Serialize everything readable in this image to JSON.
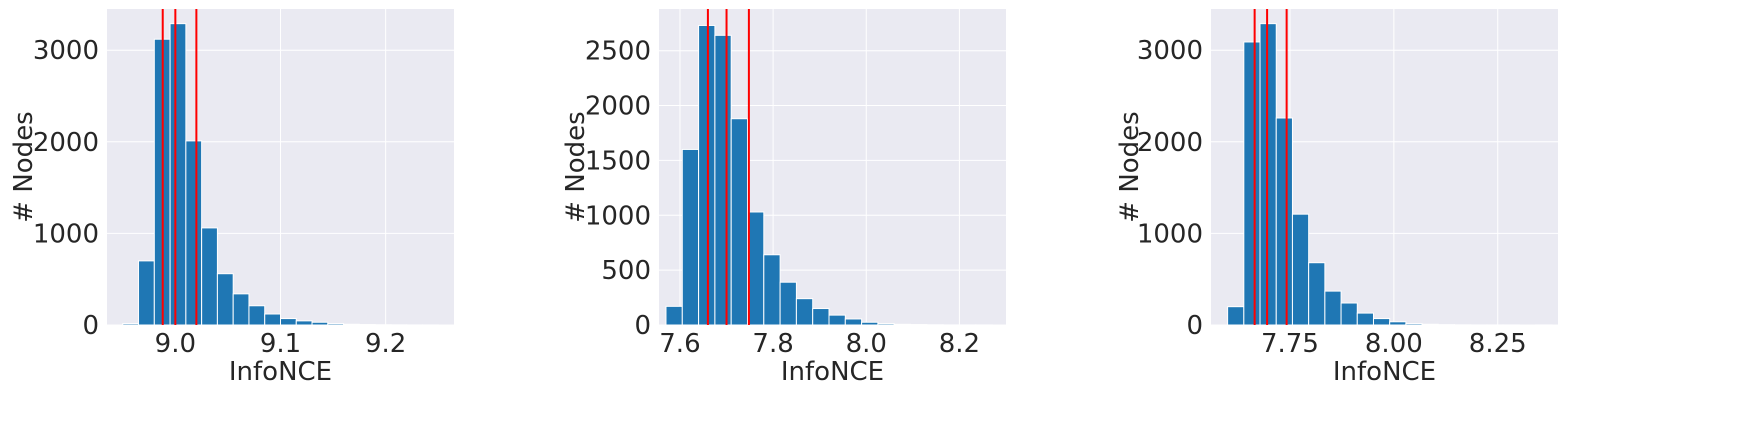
{
  "style": {
    "bar_color": "#1f77b4",
    "bar_edge": "#ffffff",
    "marker_color": "#ff0000",
    "plot_bg": "#eaeaf2",
    "grid_color": "#ffffff"
  },
  "chart_data": [
    {
      "type": "bar",
      "xlabel": "InfoNCE",
      "ylabel": "# Nodes",
      "xlim": [
        8.935,
        9.265
      ],
      "ylim": [
        0,
        3450
      ],
      "grid": true,
      "xticks": [
        9.0,
        9.1,
        9.2
      ],
      "xtick_labels": [
        "9.0",
        "9.1",
        "9.2"
      ],
      "yticks": [
        0,
        1000,
        2000,
        3000
      ],
      "ytick_labels": [
        "0",
        "1000",
        "2000",
        "3000"
      ],
      "bin_edges": [
        8.95,
        8.965,
        8.98,
        8.995,
        9.01,
        9.025,
        9.04,
        9.055,
        9.07,
        9.085,
        9.1,
        9.115,
        9.13,
        9.145,
        9.16,
        9.175,
        9.19,
        9.205,
        9.22,
        9.235,
        9.25
      ],
      "counts": [
        15,
        700,
        3120,
        3290,
        2010,
        1060,
        560,
        340,
        210,
        120,
        70,
        45,
        30,
        15,
        8,
        5,
        3,
        2,
        1,
        1
      ],
      "vlines": [
        8.988,
        9.0,
        9.02
      ]
    },
    {
      "type": "bar",
      "xlabel": "InfoNCE",
      "ylabel": "# Nodes",
      "xlim": [
        7.555,
        8.3
      ],
      "ylim": [
        0,
        2880
      ],
      "grid": true,
      "xticks": [
        7.6,
        7.8,
        8.0,
        8.2
      ],
      "xtick_labels": [
        "7.6",
        "7.8",
        "8.0",
        "8.2"
      ],
      "yticks": [
        0,
        500,
        1000,
        1500,
        2000,
        2500
      ],
      "ytick_labels": [
        "0",
        "500",
        "1000",
        "1500",
        "2000",
        "2500"
      ],
      "bin_edges": [
        7.57,
        7.605,
        7.64,
        7.675,
        7.71,
        7.745,
        7.78,
        7.815,
        7.85,
        7.885,
        7.92,
        7.955,
        7.99,
        8.025,
        8.06,
        8.095,
        8.13,
        8.165,
        8.2,
        8.235,
        8.27
      ],
      "counts": [
        170,
        1600,
        2730,
        2640,
        1880,
        1030,
        640,
        390,
        240,
        150,
        90,
        55,
        25,
        12,
        6,
        4,
        2,
        1,
        1,
        1
      ],
      "vlines": [
        7.66,
        7.7,
        7.748
      ]
    },
    {
      "type": "bar",
      "xlabel": "InfoNCE",
      "ylabel": "# Nodes",
      "xlim": [
        7.56,
        8.395
      ],
      "ylim": [
        0,
        3450
      ],
      "grid": true,
      "xticks": [
        7.75,
        8.0,
        8.25
      ],
      "xtick_labels": [
        "7.75",
        "8.00",
        "8.25"
      ],
      "yticks": [
        0,
        1000,
        2000,
        3000
      ],
      "ytick_labels": [
        "0",
        "1000",
        "2000",
        "3000"
      ],
      "bin_edges": [
        7.6,
        7.639,
        7.678,
        7.717,
        7.756,
        7.795,
        7.834,
        7.873,
        7.912,
        7.951,
        7.99,
        8.029,
        8.068,
        8.107,
        8.146,
        8.185,
        8.224,
        8.263,
        8.302,
        8.341,
        8.38
      ],
      "counts": [
        200,
        3090,
        3290,
        2260,
        1210,
        680,
        370,
        240,
        130,
        70,
        35,
        15,
        8,
        4,
        2,
        1,
        1,
        1,
        0,
        1
      ],
      "vlines": [
        7.665,
        7.695,
        7.742
      ]
    }
  ]
}
